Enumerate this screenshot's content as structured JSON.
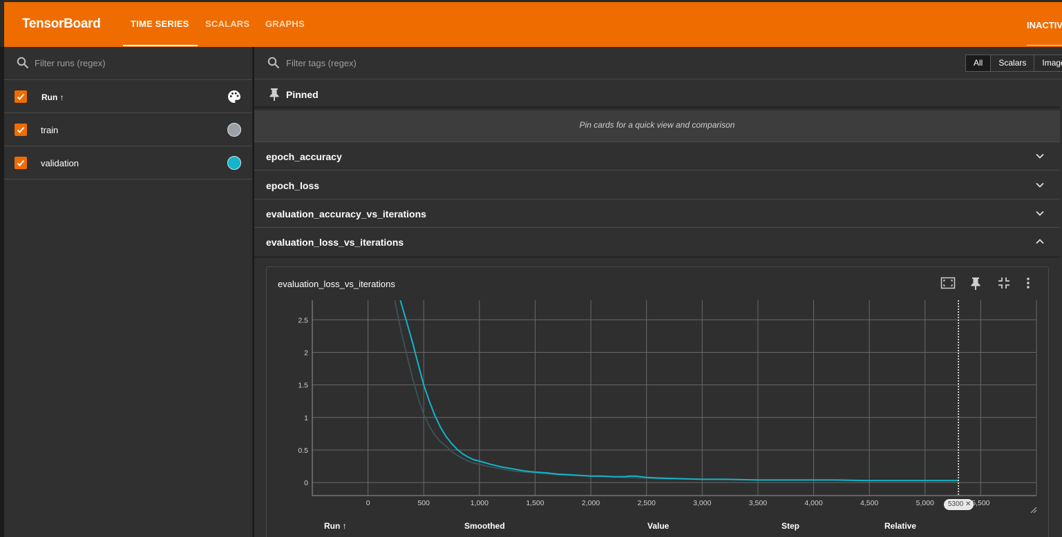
{
  "header": {
    "brand": "TensorBoard",
    "tabs": [
      {
        "label": "TIME SERIES",
        "active": true
      },
      {
        "label": "SCALARS",
        "active": false
      },
      {
        "label": "GRAPHS",
        "active": false
      }
    ],
    "status_label": "INACTIVE"
  },
  "runs_panel": {
    "filter_placeholder": "Filter runs (regex)",
    "header_label": "Run ↑",
    "runs": [
      {
        "name": "train",
        "checked": true,
        "color": "#9aa0a6"
      },
      {
        "name": "validation",
        "checked": true,
        "color": "#12b5cb"
      }
    ]
  },
  "main": {
    "filter_placeholder": "Filter tags (regex)",
    "type_filter": [
      "All",
      "Scalars",
      "Image"
    ],
    "type_filter_selected": "All",
    "pinned_title": "Pinned",
    "pinned_hint": "Pin cards for a quick view and comparison",
    "groups": [
      {
        "name": "epoch_accuracy",
        "expanded": false
      },
      {
        "name": "epoch_loss",
        "expanded": false
      },
      {
        "name": "evaluation_accuracy_vs_iterations",
        "expanded": false
      },
      {
        "name": "evaluation_loss_vs_iterations",
        "expanded": true
      }
    ]
  },
  "card": {
    "title": "evaluation_loss_vs_iterations",
    "step_chip": "5300",
    "table_headers": [
      "Run ↑",
      "Smoothed",
      "Value",
      "Step",
      "Relative"
    ]
  },
  "colors": {
    "accent": "#ef6c00",
    "validation_line": "#12b5cb",
    "train_line": "#3b5457"
  },
  "chart_data": {
    "type": "line",
    "title": "evaluation_loss_vs_iterations",
    "xlabel": "",
    "ylabel": "",
    "xlim": [
      -500,
      6000
    ],
    "ylim": [
      -0.2,
      2.8
    ],
    "x_ticks": [
      "0",
      "500",
      "1,000",
      "1,500",
      "2,000",
      "2,500",
      "3,000",
      "3,500",
      "4,000",
      "4,500",
      "5,000",
      "5,500"
    ],
    "x_tick_values": [
      0,
      500,
      1000,
      1500,
      2000,
      2500,
      3000,
      3500,
      4000,
      4500,
      5000,
      5500
    ],
    "y_ticks": [
      "0",
      "0.5",
      "1",
      "1.5",
      "2",
      "2.5"
    ],
    "y_tick_values": [
      0,
      0.5,
      1,
      1.5,
      2,
      2.5
    ],
    "grid": true,
    "step_marker": 5300,
    "series": [
      {
        "name": "validation",
        "x": [
          290,
          350,
          400,
          450,
          500,
          550,
          600,
          650,
          700,
          750,
          800,
          850,
          900,
          950,
          1000,
          1100,
          1200,
          1300,
          1400,
          1500,
          1600,
          1700,
          1800,
          1900,
          2000,
          2100,
          2200,
          2300,
          2350,
          2400,
          2500,
          2600,
          2800,
          3000,
          3200,
          3500,
          3800,
          4000,
          4200,
          4500,
          4800,
          5000,
          5300
        ],
        "y": [
          2.8,
          2.45,
          2.15,
          1.82,
          1.5,
          1.25,
          1.03,
          0.85,
          0.71,
          0.6,
          0.51,
          0.44,
          0.39,
          0.35,
          0.33,
          0.28,
          0.24,
          0.21,
          0.18,
          0.16,
          0.15,
          0.13,
          0.12,
          0.11,
          0.1,
          0.1,
          0.09,
          0.09,
          0.1,
          0.1,
          0.08,
          0.07,
          0.06,
          0.05,
          0.05,
          0.04,
          0.04,
          0.04,
          0.04,
          0.03,
          0.03,
          0.03,
          0.03
        ]
      },
      {
        "name": "train",
        "x": [
          240,
          300,
          350,
          400,
          450,
          500,
          550,
          600,
          650,
          700,
          750,
          800,
          850,
          900,
          950,
          1000,
          1100,
          1200,
          1300,
          1400,
          1500,
          1700,
          2000,
          2300,
          2600,
          3000,
          3500,
          4000,
          4500,
          5000,
          5300
        ],
        "y": [
          2.8,
          2.3,
          1.95,
          1.6,
          1.3,
          1.05,
          0.87,
          0.73,
          0.63,
          0.56,
          0.48,
          0.42,
          0.37,
          0.33,
          0.3,
          0.28,
          0.24,
          0.21,
          0.18,
          0.16,
          0.15,
          0.12,
          0.1,
          0.08,
          0.06,
          0.05,
          0.04,
          0.04,
          0.03,
          0.03,
          0.03
        ]
      }
    ]
  }
}
